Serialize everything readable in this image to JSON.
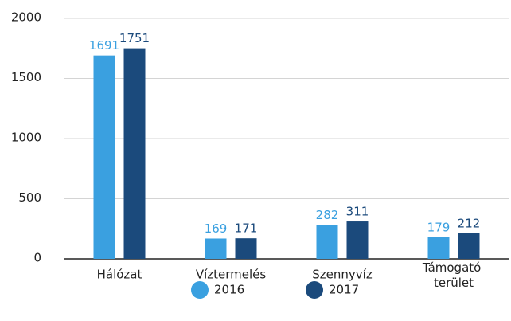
{
  "chart_data": {
    "type": "bar",
    "categories": [
      "Hálózat",
      "Víztermelés",
      "Szennyvíz",
      "Támogató terület"
    ],
    "series": [
      {
        "name": "2016",
        "color": "#3aa0e0",
        "values": [
          1691,
          169,
          282,
          179
        ]
      },
      {
        "name": "2017",
        "color": "#1b4a7c",
        "values": [
          1751,
          171,
          311,
          212
        ]
      }
    ],
    "ylim": [
      0,
      2000
    ],
    "yticks": [
      0,
      500,
      1000,
      1500,
      2000
    ],
    "grid": true,
    "legend": "bottom"
  }
}
